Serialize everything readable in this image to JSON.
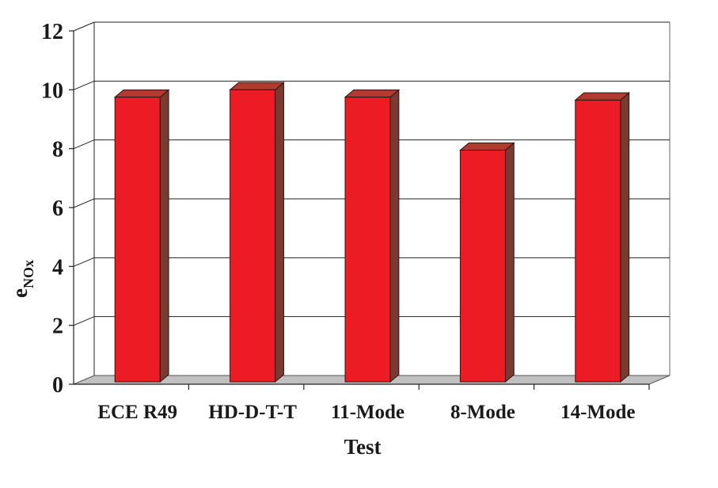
{
  "chart_data": {
    "type": "bar",
    "title": "",
    "xlabel": "Test",
    "ylabel": "e",
    "ylabel_sub": "NOx",
    "categories": [
      "ECE R49",
      "HD-D-T-T",
      "11-Mode",
      "8-Mode",
      "14-Mode"
    ],
    "values": [
      9.75,
      10.0,
      9.75,
      7.95,
      9.65
    ],
    "ylim": [
      0,
      12
    ],
    "yticks": [
      0,
      2,
      4,
      6,
      8,
      10,
      12
    ],
    "grid": true,
    "legend": "none",
    "colors": {
      "bar_front": "#ed1c24",
      "bar_side": "#7b3a2f",
      "bar_top": "#b13b2e",
      "floor": "#c0c0c0",
      "grid": "#222222"
    }
  }
}
